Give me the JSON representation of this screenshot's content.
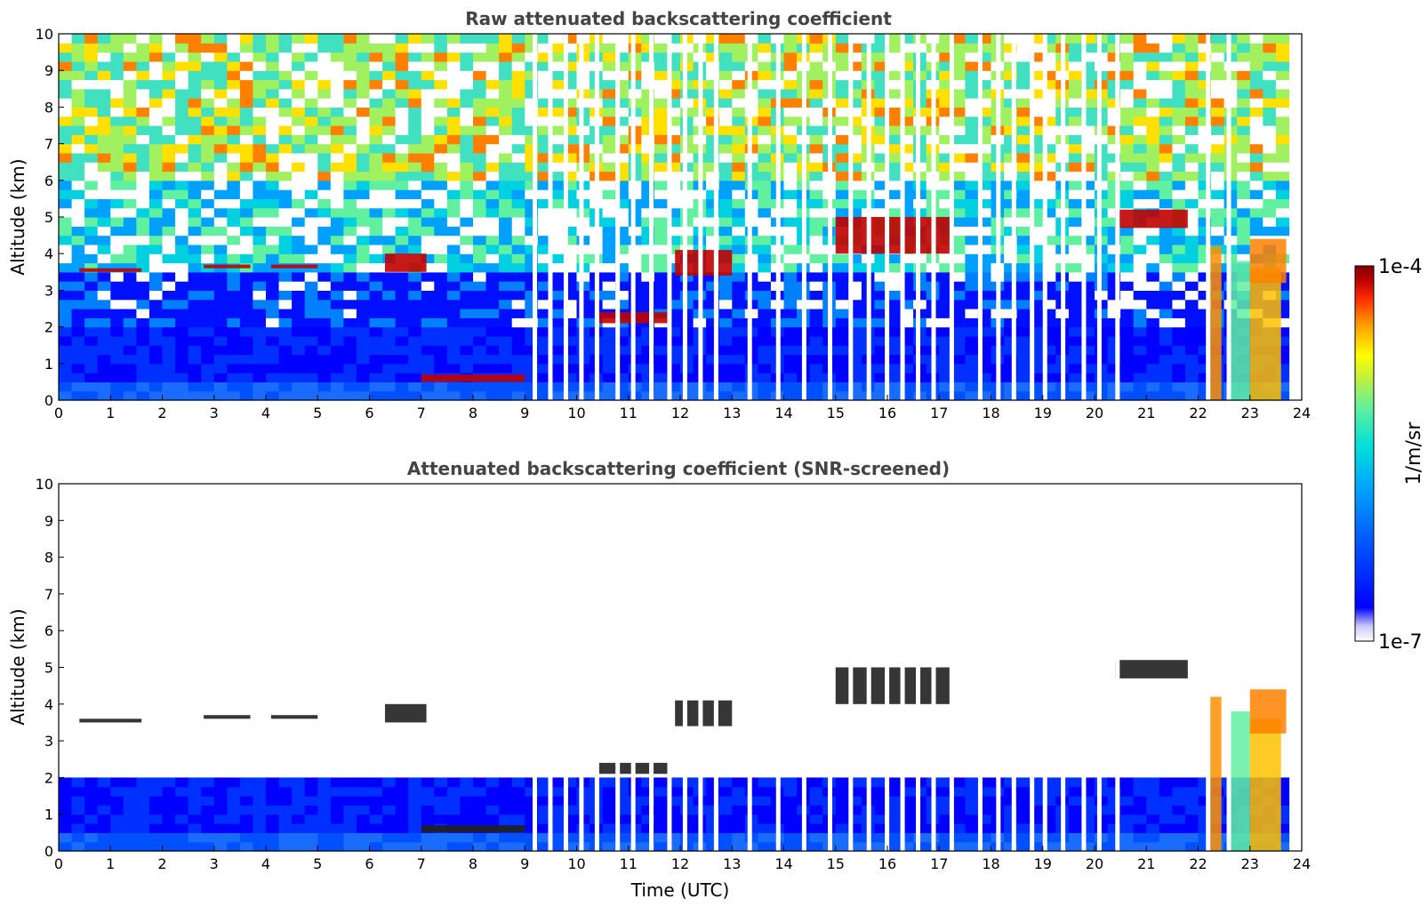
{
  "colors": {
    "background": "#ffffff",
    "title": "#444444",
    "colormap": [
      "#ffffff",
      "#c8c8f8",
      "#0000ff",
      "#0050ff",
      "#00a0ff",
      "#00e0d8",
      "#60f0a0",
      "#c0f040",
      "#ffff00",
      "#ffa000",
      "#ff3000",
      "#c00000",
      "#800000"
    ]
  },
  "axis_labels": {
    "ylabel": "Altitude (km)",
    "xlabel": "Time (UTC)"
  },
  "colorbar": {
    "label": "1/m/sr",
    "top_label": "1e-4",
    "bottom_label": "1e-7",
    "scale": "log",
    "range": [
      1e-07,
      0.0001
    ]
  },
  "chart_data": [
    {
      "type": "heatmap",
      "title": "Raw attenuated backscattering coefficient",
      "xlabel": "",
      "ylabel": "Altitude (km)",
      "xlim": [
        0,
        24
      ],
      "ylim": [
        0,
        10
      ],
      "xticks": [
        "0",
        "1",
        "2",
        "3",
        "4",
        "5",
        "6",
        "7",
        "8",
        "9",
        "10",
        "11",
        "12",
        "13",
        "14",
        "15",
        "16",
        "17",
        "18",
        "19",
        "20",
        "21",
        "22",
        "23",
        "24"
      ],
      "yticks": [
        "0",
        "1",
        "2",
        "3",
        "4",
        "5",
        "6",
        "7",
        "8",
        "9",
        "10"
      ],
      "cloud_layers": [
        {
          "t": [
            0.4,
            1.6
          ],
          "alt": [
            3.5,
            3.6
          ]
        },
        {
          "t": [
            2.8,
            3.7
          ],
          "alt": [
            3.6,
            3.7
          ]
        },
        {
          "t": [
            4.1,
            5.0
          ],
          "alt": [
            3.6,
            3.7
          ]
        },
        {
          "t": [
            6.3,
            7.1
          ],
          "alt": [
            3.5,
            4.0
          ]
        },
        {
          "t": [
            7.0,
            9.0
          ],
          "alt": [
            0.5,
            0.7
          ]
        },
        {
          "t": [
            10.4,
            11.8
          ],
          "alt": [
            2.1,
            2.4
          ]
        },
        {
          "t": [
            11.9,
            13.0
          ],
          "alt": [
            3.4,
            4.1
          ]
        },
        {
          "t": [
            15.0,
            17.2
          ],
          "alt": [
            4.0,
            5.0
          ]
        },
        {
          "t": [
            20.4,
            21.8
          ],
          "alt": [
            4.7,
            5.2
          ]
        }
      ],
      "data_gaps": [
        9.15,
        9.45,
        9.75,
        10.05,
        10.35,
        10.75,
        11.05,
        11.4,
        11.75,
        12.05,
        12.35,
        12.65,
        13.3,
        13.85,
        14.35,
        14.85,
        15.25,
        15.6,
        15.95,
        16.25,
        16.55,
        16.85,
        17.2,
        17.75,
        18.1,
        18.4,
        18.75,
        19.0,
        19.35,
        19.75,
        20.05,
        20.4,
        22.15,
        22.55
      ]
    },
    {
      "type": "heatmap",
      "title": "Attenuated backscattering coefficient (SNR-screened)",
      "xlabel": "Time (UTC)",
      "ylabel": "Altitude (km)",
      "xlim": [
        0,
        24
      ],
      "ylim": [
        0,
        10
      ],
      "xticks": [
        "0",
        "1",
        "2",
        "3",
        "4",
        "5",
        "6",
        "7",
        "8",
        "9",
        "10",
        "11",
        "12",
        "13",
        "14",
        "15",
        "16",
        "17",
        "18",
        "19",
        "20",
        "21",
        "22",
        "23",
        "24"
      ],
      "yticks": [
        "0",
        "1",
        "2",
        "3",
        "4",
        "5",
        "6",
        "7",
        "8",
        "9",
        "10"
      ]
    }
  ]
}
